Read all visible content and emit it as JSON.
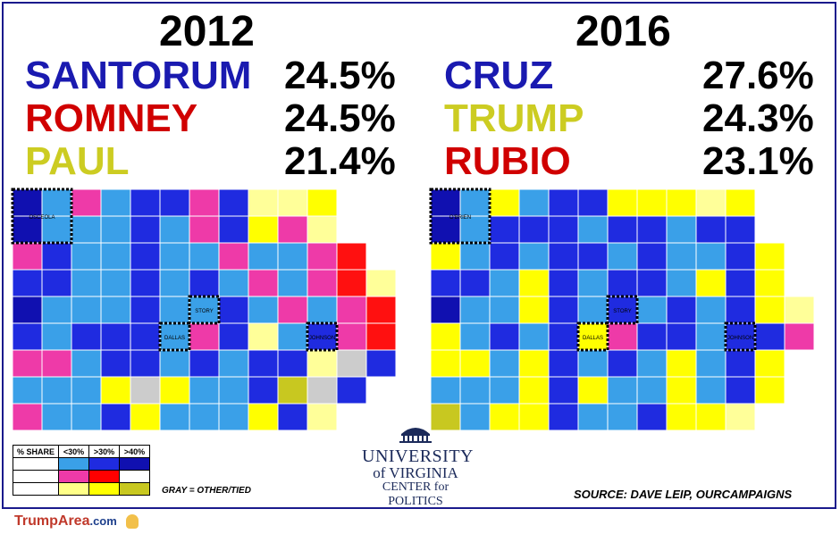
{
  "left": {
    "year": "2012",
    "candidates": [
      {
        "name": "SANTORUM",
        "pct": "24.5%",
        "color": "#1a1ab0"
      },
      {
        "name": "ROMNEY",
        "pct": "24.5%",
        "color": "#d00000"
      },
      {
        "name": "PAUL",
        "pct": "21.4%",
        "color": "#cccc22"
      }
    ],
    "highlighted": [
      "OSCEOLA",
      "STORY",
      "DALLAS",
      "JOHNSON"
    ]
  },
  "right": {
    "year": "2016",
    "candidates": [
      {
        "name": "CRUZ",
        "pct": "27.6%",
        "color": "#1a1ab0"
      },
      {
        "name": "TRUMP",
        "pct": "24.3%",
        "color": "#cccc22"
      },
      {
        "name": "RUBIO",
        "pct": "23.1%",
        "color": "#d00000"
      }
    ],
    "highlighted": [
      "O'BRIEN",
      "STORY",
      "DALLAS",
      "JOHNSON"
    ]
  },
  "legend": {
    "header": "% SHARE",
    "cols": [
      "<30%",
      ">30%",
      ">40%"
    ],
    "colors": {
      "santorum_cruz": [
        "#3aa0e8",
        "#1f2be0",
        "#1010b0"
      ],
      "romney_rubio": [
        "#ee3aa8",
        "#ff0000",
        "#ffffff"
      ],
      "paul_trump": [
        "#ffff88",
        "#ffff00",
        "#c8c820"
      ]
    }
  },
  "gray_note": "GRAY = OTHER/TIED",
  "source": "SOURCE: DAVE LEIP, OURCAMPAIGNS",
  "logo": {
    "line1": "UNIVERSITY",
    "line2": "of VIRGINIA",
    "line3": "CENTER for POLITICS"
  },
  "footer": {
    "brand": "TrumpArea",
    "domain": ".com"
  }
}
